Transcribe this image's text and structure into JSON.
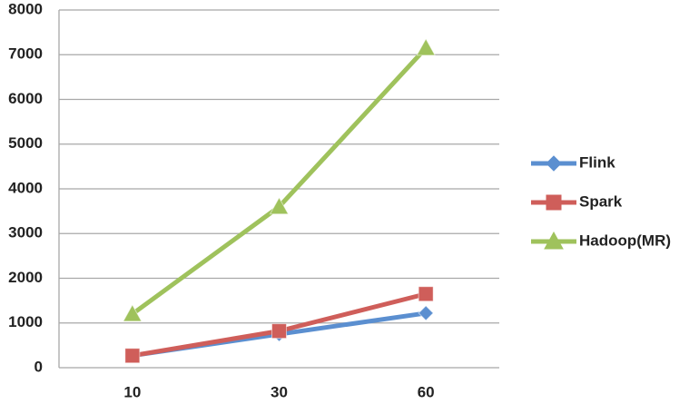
{
  "chart_data": {
    "type": "line",
    "categories": [
      "10",
      "30",
      "60"
    ],
    "series": [
      {
        "name": "Flink",
        "color": "#5b8fd0",
        "marker": "diamond",
        "values": [
          270,
          750,
          1220
        ]
      },
      {
        "name": "Spark",
        "color": "#cf5e5a",
        "marker": "square",
        "values": [
          270,
          820,
          1650
        ]
      },
      {
        "name": "Hadoop(MR)",
        "color": "#9fc25c",
        "marker": "triangle",
        "values": [
          1200,
          3600,
          7150
        ]
      }
    ],
    "ylim": [
      0,
      8000
    ],
    "yticks": [
      0,
      1000,
      2000,
      3000,
      4000,
      5000,
      6000,
      7000,
      8000
    ],
    "grid": true,
    "legend": "right"
  }
}
